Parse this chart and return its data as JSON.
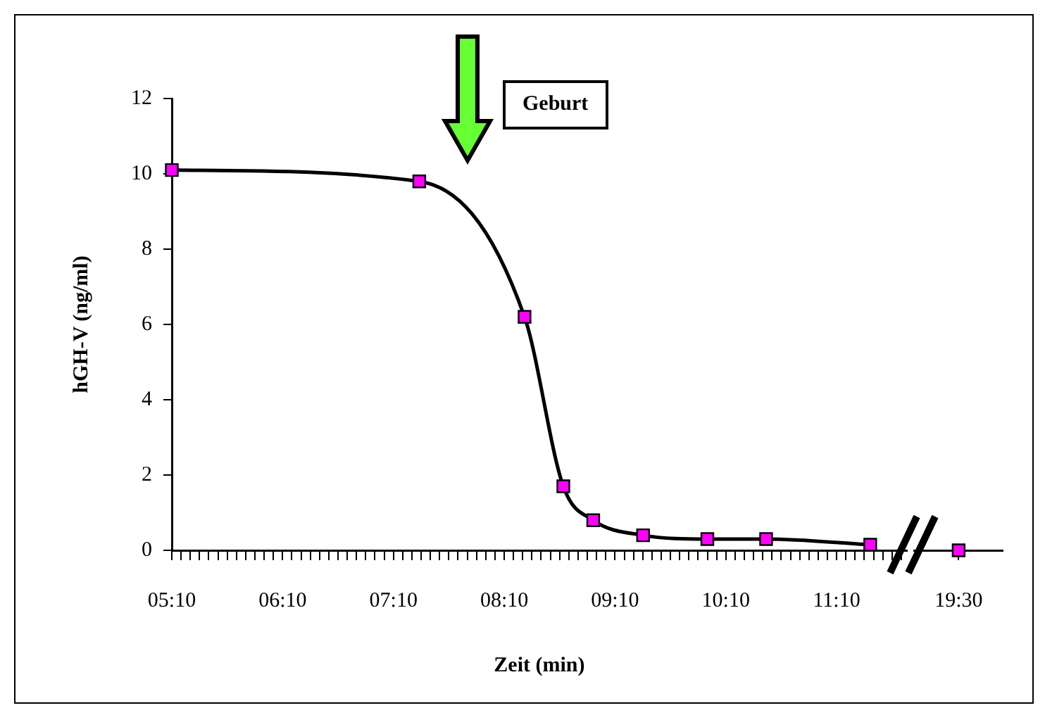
{
  "chart_data": [
    {
      "type": "line",
      "xlabel": "Zeit (min)",
      "ylabel": "hGH-V (ng/ml)",
      "x": [
        5.1667,
        7.4,
        8.35,
        8.7,
        8.97,
        9.42,
        10.0,
        10.53,
        11.47
      ],
      "series": [
        {
          "color": "#000000",
          "colors": [
            "#ff00ff",
            "#ff00ff",
            "#ff00ff",
            "#ff00ff",
            "#ff00ff",
            "#ff00ff",
            "#ff00ff",
            "#ff00ff",
            "#ff00ff"
          ],
          "values": [
            10.1,
            9.8,
            6.2,
            1.7,
            0.8,
            0.4,
            0.3,
            0.3,
            0.15
          ]
        }
      ],
      "xlim": [
        5.1667,
        11.8
      ],
      "xticks": [
        {
          "value": 5.1667,
          "label": "05:10"
        },
        {
          "value": 5.25,
          "label": null
        },
        {
          "value": 5.3333,
          "label": null
        },
        {
          "value": 5.4167,
          "label": null
        },
        {
          "value": 5.5,
          "label": null
        },
        {
          "value": 5.5833,
          "label": null
        },
        {
          "value": 5.6667,
          "label": null
        },
        {
          "value": 5.75,
          "label": null
        },
        {
          "value": 5.8333,
          "label": null
        },
        {
          "value": 5.9167,
          "label": null
        },
        {
          "value": 6,
          "label": null
        },
        {
          "value": 6.0833,
          "label": null
        },
        {
          "value": 6.1667,
          "label": "06:10"
        },
        {
          "value": 6.25,
          "label": null
        },
        {
          "value": 6.3333,
          "label": null
        },
        {
          "value": 6.4167,
          "label": null
        },
        {
          "value": 6.5,
          "label": null
        },
        {
          "value": 6.5833,
          "label": null
        },
        {
          "value": 6.6667,
          "label": null
        },
        {
          "value": 6.75,
          "label": null
        },
        {
          "value": 6.8333,
          "label": null
        },
        {
          "value": 6.9167,
          "label": null
        },
        {
          "value": 7,
          "label": null
        },
        {
          "value": 7.0833,
          "label": null
        },
        {
          "value": 7.1667,
          "label": "07:10"
        },
        {
          "value": 7.25,
          "label": null
        },
        {
          "value": 7.3333,
          "label": null
        },
        {
          "value": 7.4167,
          "label": null
        },
        {
          "value": 7.5,
          "label": null
        },
        {
          "value": 7.5833,
          "label": null
        },
        {
          "value": 7.6667,
          "label": null
        },
        {
          "value": 7.75,
          "label": null
        },
        {
          "value": 7.8333,
          "label": null
        },
        {
          "value": 7.9167,
          "label": null
        },
        {
          "value": 8,
          "label": null
        },
        {
          "value": 8.0833,
          "label": null
        },
        {
          "value": 8.1667,
          "label": "08:10"
        },
        {
          "value": 8.25,
          "label": null
        },
        {
          "value": 8.3333,
          "label": null
        },
        {
          "value": 8.4167,
          "label": null
        },
        {
          "value": 8.5,
          "label": null
        },
        {
          "value": 8.5833,
          "label": null
        },
        {
          "value": 8.6667,
          "label": null
        },
        {
          "value": 8.75,
          "label": null
        },
        {
          "value": 8.8333,
          "label": null
        },
        {
          "value": 8.9167,
          "label": null
        },
        {
          "value": 9,
          "label": null
        },
        {
          "value": 9.0833,
          "label": null
        },
        {
          "value": 9.1667,
          "label": "09:10"
        },
        {
          "value": 9.25,
          "label": null
        },
        {
          "value": 9.3333,
          "label": null
        },
        {
          "value": 9.4167,
          "label": null
        },
        {
          "value": 9.5,
          "label": null
        },
        {
          "value": 9.5833,
          "label": null
        },
        {
          "value": 9.6667,
          "label": null
        },
        {
          "value": 9.75,
          "label": null
        },
        {
          "value": 9.8333,
          "label": null
        },
        {
          "value": 9.9167,
          "label": null
        },
        {
          "value": 10,
          "label": null
        },
        {
          "value": 10.0833,
          "label": null
        },
        {
          "value": 10.1667,
          "label": "10:10"
        },
        {
          "value": 10.25,
          "label": null
        },
        {
          "value": 10.3333,
          "label": null
        },
        {
          "value": 10.4167,
          "label": null
        },
        {
          "value": 10.5,
          "label": null
        },
        {
          "value": 10.5833,
          "label": null
        },
        {
          "value": 10.6667,
          "label": null
        },
        {
          "value": 10.75,
          "label": null
        },
        {
          "value": 10.8333,
          "label": null
        },
        {
          "value": 10.9167,
          "label": null
        },
        {
          "value": 11,
          "label": null
        },
        {
          "value": 11.0833,
          "label": null
        },
        {
          "value": 11.1667,
          "label": "11:10"
        },
        {
          "value": 11.25,
          "label": null
        },
        {
          "value": 11.3333,
          "label": null
        },
        {
          "value": 11.4167,
          "label": null
        },
        {
          "value": 11.5,
          "label": null
        },
        {
          "value": 11.5833,
          "label": null
        },
        {
          "value": 11.6667,
          "label": null
        },
        {
          "value": 11.75,
          "label": null
        }
      ],
      "ylim": [
        0,
        12
      ],
      "yticks": [
        0,
        2,
        4,
        6,
        8,
        10,
        12
      ],
      "grid": false,
      "marker": "square",
      "line_style": "solid",
      "annotations": [
        "Geburt"
      ]
    },
    {
      "type": "line",
      "categories": [
        "19:30"
      ],
      "series": [
        {
          "color": "#000000",
          "colors": [
            "#ff00ff"
          ],
          "values": [
            0
          ]
        }
      ],
      "ylim": [
        0,
        12
      ],
      "tick_labels": "x",
      "grid": false,
      "marker": "square",
      "line_style": "solid"
    }
  ]
}
